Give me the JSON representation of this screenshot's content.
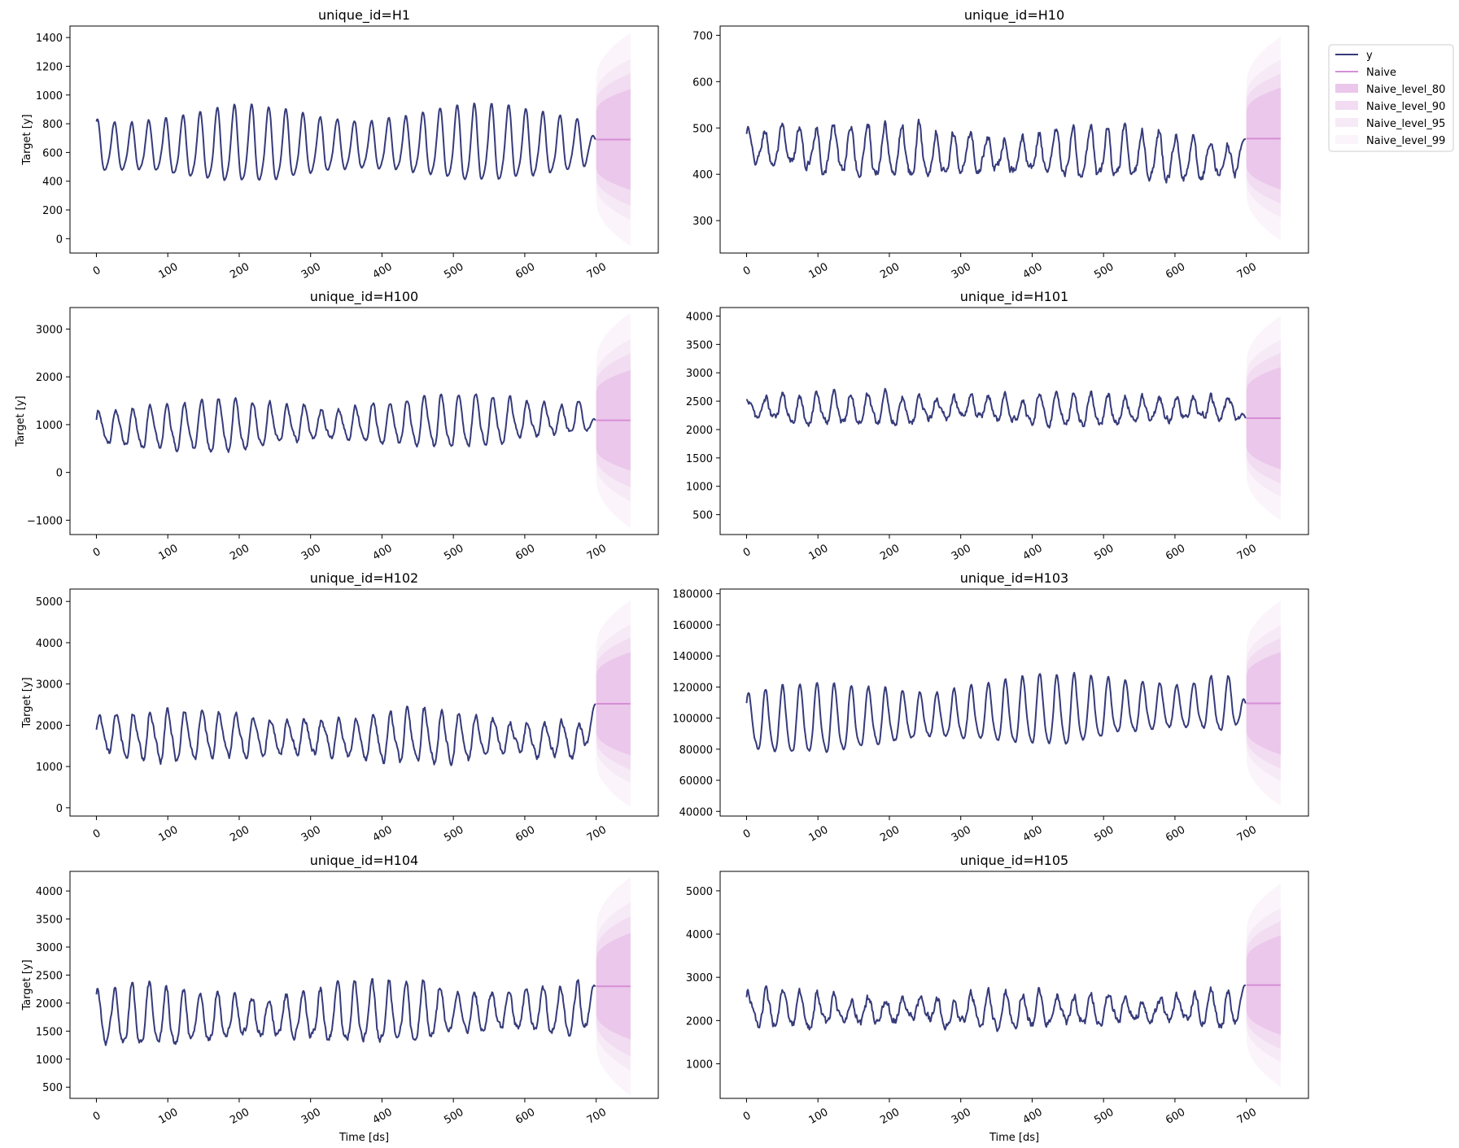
{
  "figure": {
    "xlabel": "Time [ds]",
    "ylabel": "Target [y]",
    "colors": {
      "y": "#363b7a",
      "naive": "#d68fd6",
      "band80": "#ebc7eb",
      "band90": "#f2dcf2",
      "band95": "#f7eaf7",
      "band99": "#fbf4fb"
    }
  },
  "legend": {
    "entries": [
      {
        "label": "y",
        "kind": "line",
        "color": "#363b7a"
      },
      {
        "label": "Naive",
        "kind": "line",
        "color": "#d68fd6"
      },
      {
        "label": "Naive_level_80",
        "kind": "patch",
        "color": "#ebc7eb"
      },
      {
        "label": "Naive_level_90",
        "kind": "patch",
        "color": "#f2dcf2"
      },
      {
        "label": "Naive_level_95",
        "kind": "patch",
        "color": "#f7eaf7"
      },
      {
        "label": "Naive_level_99",
        "kind": "patch",
        "color": "#fbf4fb"
      }
    ]
  },
  "chart_data": [
    {
      "type": "line",
      "title": "unique_id=H1",
      "xlabel": "",
      "ylabel": "Target [y]",
      "xlim": [
        -37,
        787
      ],
      "xticks": [
        0,
        100,
        200,
        300,
        400,
        500,
        600,
        700
      ],
      "ylim": [
        -100,
        1480
      ],
      "yticks": [
        0,
        200,
        400,
        600,
        800,
        1000,
        1200,
        1400
      ],
      "history": {
        "n": 700,
        "mean": 625,
        "amp": 210,
        "amp_var": 50,
        "period": 24,
        "phase": 1.3,
        "noise": 6,
        "trend": 20,
        "last": 690
      },
      "forecast": {
        "x_start": 700,
        "x_end": 748,
        "value": 690,
        "hw80": [
          200,
          350
        ],
        "hw90": [
          270,
          460
        ],
        "hw95": [
          330,
          560
        ],
        "hw99": [
          430,
          740
        ]
      }
    },
    {
      "type": "line",
      "title": "unique_id=H10",
      "xlabel": "",
      "ylabel": "",
      "xlim": [
        -37,
        787
      ],
      "xticks": [
        0,
        100,
        200,
        300,
        400,
        500,
        600,
        700
      ],
      "ylim": [
        230,
        720
      ],
      "yticks": [
        300,
        400,
        500,
        600,
        700
      ],
      "history": {
        "n": 700,
        "mean": 455,
        "amp": 45,
        "amp_var": 10,
        "period": 24,
        "phase": 1.2,
        "noise": 9,
        "trend": -25,
        "last": 477
      },
      "forecast": {
        "x_start": 700,
        "x_end": 748,
        "value": 477,
        "hw80": [
          60,
          110
        ],
        "hw90": [
          80,
          140
        ],
        "hw95": [
          95,
          170
        ],
        "hw99": [
          120,
          220
        ]
      }
    },
    {
      "type": "line",
      "title": "unique_id=H100",
      "xlabel": "",
      "ylabel": "Target [y]",
      "xlim": [
        -37,
        787
      ],
      "xticks": [
        0,
        100,
        200,
        300,
        400,
        500,
        600,
        700
      ],
      "ylim": [
        -1300,
        3450
      ],
      "yticks": [
        -1000,
        0,
        1000,
        2000,
        3000
      ],
      "history": {
        "n": 700,
        "mean": 900,
        "amp": 420,
        "amp_var": 120,
        "period": 24,
        "phase": 0.6,
        "noise": 45,
        "trend": 200,
        "last": 1090
      },
      "forecast": {
        "x_start": 700,
        "x_end": 748,
        "value": 1090,
        "hw80": [
          600,
          1050
        ],
        "hw90": [
          800,
          1400
        ],
        "hw95": [
          950,
          1700
        ],
        "hw99": [
          1250,
          2250
        ]
      }
    },
    {
      "type": "line",
      "title": "unique_id=H101",
      "xlabel": "",
      "ylabel": "",
      "xlim": [
        -37,
        787
      ],
      "xticks": [
        0,
        100,
        200,
        300,
        400,
        500,
        600,
        700
      ],
      "ylim": [
        150,
        4150
      ],
      "yticks": [
        500,
        1000,
        1500,
        2000,
        2500,
        3000,
        3500,
        4000
      ],
      "history": {
        "n": 700,
        "mean": 2350,
        "amp": 220,
        "amp_var": 60,
        "period": 24,
        "phase": 0.9,
        "noise": 60,
        "trend": 0,
        "last": 2200
      },
      "forecast": {
        "x_start": 700,
        "x_end": 748,
        "value": 2200,
        "hw80": [
          500,
          900
        ],
        "hw90": [
          650,
          1150
        ],
        "hw95": [
          780,
          1380
        ],
        "hw99": [
          1000,
          1800
        ]
      }
    },
    {
      "type": "line",
      "title": "unique_id=H102",
      "xlabel": "",
      "ylabel": "Target [y]",
      "xlim": [
        -37,
        787
      ],
      "xticks": [
        0,
        100,
        200,
        300,
        400,
        500,
        600,
        700
      ],
      "ylim": [
        -200,
        5300
      ],
      "yticks": [
        0,
        1000,
        2000,
        3000,
        4000,
        5000
      ],
      "history": {
        "n": 700,
        "mean": 1750,
        "amp": 480,
        "amp_var": 120,
        "period": 24,
        "phase": 0.4,
        "noise": 70,
        "trend": -100,
        "last": 2520
      },
      "forecast": {
        "x_start": 700,
        "x_end": 748,
        "value": 2520,
        "hw80": [
          700,
          1250
        ],
        "hw90": [
          900,
          1600
        ],
        "hw95": [
          1080,
          1920
        ],
        "hw99": [
          1400,
          2500
        ]
      }
    },
    {
      "type": "line",
      "title": "unique_id=H103",
      "xlabel": "",
      "ylabel": "",
      "xlim": [
        -37,
        787
      ],
      "xticks": [
        0,
        100,
        200,
        300,
        400,
        500,
        600,
        700
      ],
      "ylim": [
        37000,
        183000
      ],
      "yticks": [
        40000,
        60000,
        80000,
        100000,
        120000,
        140000,
        160000,
        180000
      ],
      "history": {
        "n": 700,
        "mean": 96000,
        "amp": 18000,
        "amp_var": 4000,
        "period": 24,
        "phase": 0.8,
        "noise": 900,
        "trend": 12000,
        "last": 109500
      },
      "forecast": {
        "x_start": 700,
        "x_end": 748,
        "value": 109500,
        "hw80": [
          18000,
          33000
        ],
        "hw90": [
          23000,
          42000
        ],
        "hw95": [
          27500,
          50000
        ],
        "hw99": [
          36000,
          66000
        ]
      }
    },
    {
      "type": "line",
      "title": "unique_id=H104",
      "xlabel": "Time [ds]",
      "ylabel": "Target [y]",
      "xlim": [
        -37,
        787
      ],
      "xticks": [
        0,
        100,
        200,
        300,
        400,
        500,
        600,
        700
      ],
      "ylim": [
        300,
        4350
      ],
      "yticks": [
        500,
        1000,
        1500,
        2000,
        2500,
        3000,
        3500,
        4000
      ],
      "history": {
        "n": 700,
        "mean": 1700,
        "amp": 420,
        "amp_var": 100,
        "period": 24,
        "phase": 1.1,
        "noise": 60,
        "trend": 150,
        "last": 2300
      },
      "forecast": {
        "x_start": 700,
        "x_end": 748,
        "value": 2300,
        "hw80": [
          500,
          950
        ],
        "hw90": [
          650,
          1250
        ],
        "hw95": [
          800,
          1500
        ],
        "hw99": [
          1050,
          1950
        ]
      }
    },
    {
      "type": "line",
      "title": "unique_id=H105",
      "xlabel": "Time [ds]",
      "ylabel": "",
      "xlim": [
        -37,
        787
      ],
      "xticks": [
        0,
        100,
        200,
        300,
        400,
        500,
        600,
        700
      ],
      "ylim": [
        200,
        5450
      ],
      "yticks": [
        1000,
        2000,
        3000,
        4000,
        5000
      ],
      "history": {
        "n": 700,
        "mean": 2200,
        "amp": 300,
        "amp_var": 80,
        "period": 24,
        "phase": 0.7,
        "noise": 90,
        "trend": 50,
        "last": 2820
      },
      "forecast": {
        "x_start": 700,
        "x_end": 748,
        "value": 2820,
        "hw80": [
          600,
          1150
        ],
        "hw90": [
          780,
          1480
        ],
        "hw95": [
          950,
          1780
        ],
        "hw99": [
          1250,
          2350
        ]
      }
    }
  ]
}
